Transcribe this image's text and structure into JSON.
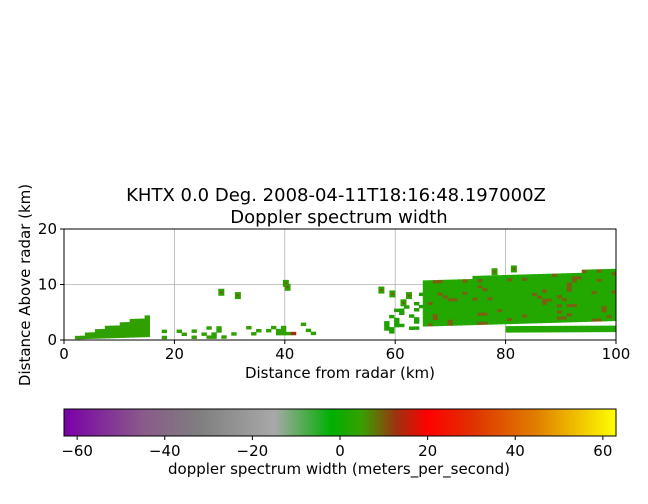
{
  "chart_data": {
    "type": "heatmap",
    "title": "KHTX 0.0 Deg. 2008-04-11T18:16:48.197000Z",
    "subtitle": "Doppler spectrum width",
    "xlabel": "Distance from radar (km)",
    "ylabel": "Distance Above radar  (km)",
    "xlim": [
      0,
      100
    ],
    "ylim": [
      0,
      20
    ],
    "xticks": [
      "0",
      "20",
      "40",
      "60",
      "80",
      "100"
    ],
    "yticks": [
      "0",
      "10",
      "20"
    ],
    "grid": true,
    "colorbar": {
      "label": "doppler spectrum width (meters_per_second)",
      "range": [
        -63,
        63
      ],
      "ticks": [
        "−60",
        "−40",
        "−20",
        "0",
        "20",
        "40",
        "60"
      ],
      "tick_values": [
        -60,
        -40,
        -20,
        0,
        20,
        40,
        60
      ],
      "colors": [
        {
          "value": -63,
          "color": "#7a00a8"
        },
        {
          "value": -45,
          "color": "#8a5a8a"
        },
        {
          "value": -32,
          "color": "#7f7f7f"
        },
        {
          "value": -15,
          "color": "#a8a8a8"
        },
        {
          "value": -2,
          "color": "#00b000"
        },
        {
          "value": 5,
          "color": "#38a000"
        },
        {
          "value": 13,
          "color": "#a03010"
        },
        {
          "value": 20,
          "color": "#ff0000"
        },
        {
          "value": 30,
          "color": "#e03000"
        },
        {
          "value": 45,
          "color": "#e08000"
        },
        {
          "value": 63,
          "color": "#ffff00"
        }
      ]
    },
    "echo_regions": [
      {
        "x": [
          2,
          15
        ],
        "y_bottom": [
          0.2,
          0.6
        ],
        "y_top": [
          0.5,
          4.2
        ],
        "main_color": "#2fa000",
        "speckle_color": "#8a4a10"
      },
      {
        "x": [
          15,
          45
        ],
        "y_bottom": [
          0.2,
          0.4
        ],
        "y_top": [
          1.5,
          2.8
        ],
        "main_color": "#2fa000",
        "speckle_color": "#a03010",
        "sparse": true
      },
      {
        "x": [
          58,
          65
        ],
        "y_bottom": [
          1.2,
          1.4
        ],
        "y_top": [
          4.0,
          8.5
        ],
        "main_color": "#1fa000",
        "speckle_color": "#7a5a10",
        "sparse": true
      },
      {
        "x": [
          65,
          100
        ],
        "y_bottom": [
          2.5,
          3.5
        ],
        "y_top": [
          10.5,
          12.5
        ],
        "main_color": "#22a800",
        "speckle_color": "#7a6010"
      },
      {
        "x": [
          80,
          100
        ],
        "y_bottom": [
          1.4,
          1.5
        ],
        "y_top": [
          2.0,
          2.2
        ],
        "main_color": "#22a800",
        "speckle_color": "#22a800"
      }
    ],
    "isolated_echoes": [
      {
        "x": 28.5,
        "y": 8.6
      },
      {
        "x": 31.5,
        "y": 8.0
      },
      {
        "x": 40.2,
        "y": 10.2
      },
      {
        "x": 40.5,
        "y": 9.5
      },
      {
        "x": 57.5,
        "y": 9.0
      },
      {
        "x": 59.5,
        "y": 8.3
      },
      {
        "x": 62.5,
        "y": 8.0
      },
      {
        "x": 61.5,
        "y": 6.7
      },
      {
        "x": 81.5,
        "y": 12.8
      },
      {
        "x": 78.0,
        "y": 12.3
      }
    ]
  }
}
